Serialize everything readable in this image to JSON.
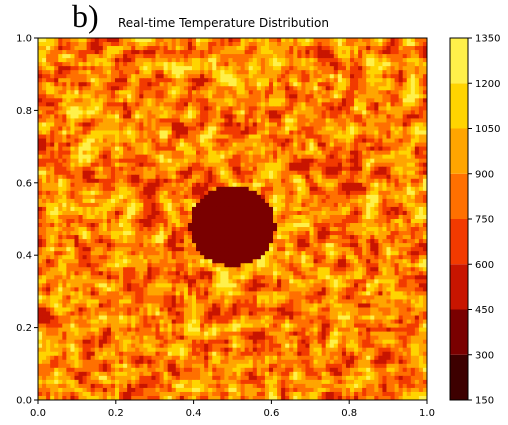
{
  "panel_label": "b)",
  "chart_data": {
    "type": "heatmap",
    "title": "Real-time Temperature Distribution",
    "xlabel": "",
    "ylabel": "",
    "xlim": [
      0.0,
      1.0
    ],
    "ylim": [
      0.0,
      1.0
    ],
    "x_ticks": [
      "0.0",
      "0.2",
      "0.4",
      "0.6",
      "0.8",
      "1.0"
    ],
    "y_ticks": [
      "0.0",
      "0.2",
      "0.4",
      "0.6",
      "0.8",
      "1.0"
    ],
    "field": "random speckled temperature field (mostly 450–1350) with a cool circular region",
    "cool_region": {
      "center": [
        0.5,
        0.48
      ],
      "radius": 0.11,
      "value_range": [
        300,
        450
      ]
    },
    "colorbar": {
      "levels": [
        150,
        300,
        450,
        600,
        750,
        900,
        1050,
        1200,
        1350
      ],
      "tick_labels": [
        "150",
        "300",
        "450",
        "600",
        "750",
        "900",
        "1050",
        "1200",
        "1350"
      ],
      "colors": [
        "#3d0000",
        "#7a0000",
        "#c81500",
        "#f23a00",
        "#ff7000",
        "#ffa500",
        "#ffd400",
        "#fff04a",
        "#ffffc8"
      ]
    },
    "grid": false
  }
}
